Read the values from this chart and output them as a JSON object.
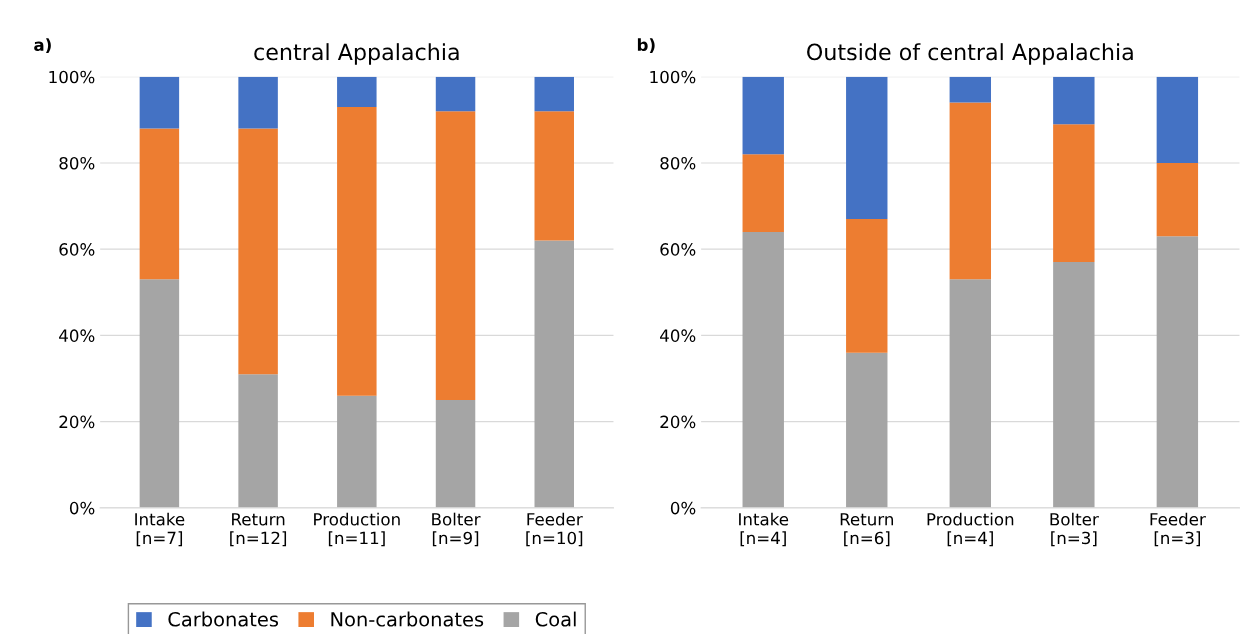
{
  "chart_data": [
    {
      "type": "bar",
      "stacked": true,
      "title": "central Appalachia",
      "annotations": [
        "a)"
      ],
      "categories": [
        "Intake\n[n=7]",
        "Return\n[n=12]",
        "Production\n[n=11]",
        "Bolter\n[n=9]",
        "Feeder\n[n=10]"
      ],
      "series": [
        {
          "name": "Coal",
          "color": "#a5a5a5",
          "values": [
            53,
            31,
            26,
            25,
            62
          ]
        },
        {
          "name": "Non-carbonates",
          "color": "#ed7d31",
          "values": [
            35,
            57,
            67,
            67,
            30
          ]
        },
        {
          "name": "Carbonates",
          "color": "#4472c4",
          "values": [
            12,
            12,
            7,
            8,
            8
          ]
        }
      ],
      "ylim": [
        0,
        100
      ],
      "yticks": [
        {
          "value": 0,
          "label": "0%"
        },
        {
          "value": 20,
          "label": "20%"
        },
        {
          "value": 40,
          "label": "40%"
        },
        {
          "value": 60,
          "label": "60%"
        },
        {
          "value": 80,
          "label": "80%"
        },
        {
          "value": 100,
          "label": "100%"
        }
      ],
      "grid": "y",
      "legend": "bottom"
    },
    {
      "type": "bar",
      "stacked": true,
      "title": "Outside of central Appalachia",
      "annotations": [
        "b)"
      ],
      "categories": [
        "Intake\n[n=4]",
        "Return\n[n=6]",
        "Production\n[n=4]",
        "Bolter\n[n=3]",
        "Feeder\n[n=3]"
      ],
      "series": [
        {
          "color": "#a5a5a5",
          "values": [
            64,
            36,
            53,
            57,
            63
          ]
        },
        {
          "color": "#ed7d31",
          "values": [
            18,
            31,
            41,
            32,
            17
          ]
        },
        {
          "color": "#4472c4",
          "values": [
            18,
            33,
            6,
            11,
            20
          ]
        }
      ],
      "ylim": [
        0,
        100
      ],
      "yticks": [
        {
          "value": 0,
          "label": "0%"
        },
        {
          "value": 20,
          "label": "20%"
        },
        {
          "value": 40,
          "label": "40%"
        },
        {
          "value": 60,
          "label": "60%"
        },
        {
          "value": 80,
          "label": "80%"
        },
        {
          "value": 100,
          "label": "100%"
        }
      ],
      "grid": "y",
      "legend": false
    }
  ]
}
